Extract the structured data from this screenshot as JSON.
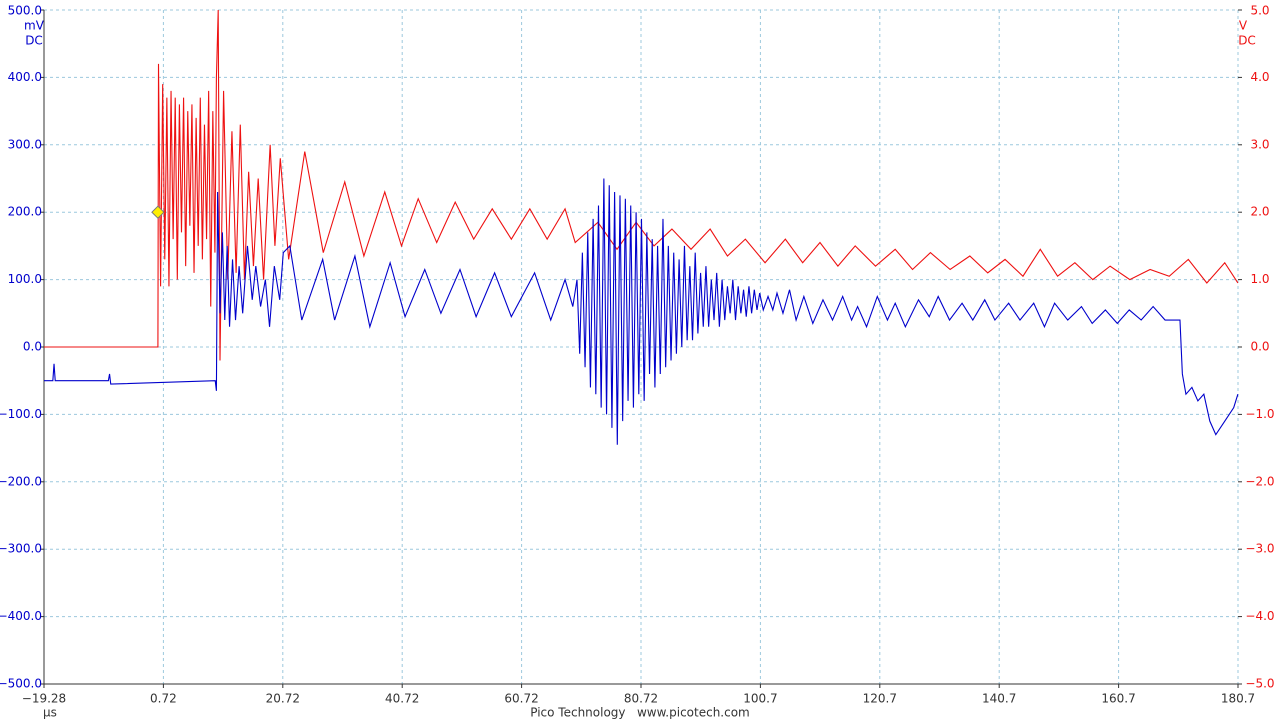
{
  "chart_data": {
    "type": "line",
    "y_unit": "mV",
    "y_coupling": "DC",
    "y2_unit": "V",
    "y2_coupling": "DC",
    "x_unit": "µs",
    "footer": "Pico Technology   www.picotech.com",
    "grid": true,
    "xlim": [
      -19.28,
      180.72
    ],
    "xticks": [
      {
        "value": -19.28,
        "label": "−19.28"
      },
      0.72,
      20.72,
      40.72,
      60.72,
      80.72,
      {
        "value": 100.72,
        "label": "100.7"
      },
      {
        "value": 120.72,
        "label": "120.7"
      },
      {
        "value": 140.72,
        "label": "140.7"
      },
      {
        "value": 160.72,
        "label": "160.7"
      },
      {
        "value": 180.72,
        "label": "180.7"
      }
    ],
    "ylim": [
      -500,
      500
    ],
    "yticks": [
      {
        "value": 500,
        "label": "500.0"
      },
      {
        "value": 400,
        "label": "400.0"
      },
      {
        "value": 300,
        "label": "300.0"
      },
      {
        "value": 200,
        "label": "200.0"
      },
      {
        "value": 100,
        "label": "100.0"
      },
      {
        "value": 0,
        "label": "0.0"
      },
      {
        "value": -100,
        "label": "−100.0"
      },
      {
        "value": -200,
        "label": "−200.0"
      },
      {
        "value": -300,
        "label": "−300.0"
      },
      {
        "value": -400,
        "label": "−400.0"
      },
      {
        "value": -500,
        "label": "−500.0"
      }
    ],
    "y2lim": [
      -5,
      5
    ],
    "y2ticks": [
      {
        "value": 5,
        "label": "5.0"
      },
      {
        "value": 4,
        "label": "4.0"
      },
      {
        "value": 3,
        "label": "3.0"
      },
      {
        "value": 2,
        "label": "2.0"
      },
      {
        "value": 1,
        "label": "1.0"
      },
      {
        "value": 0,
        "label": "0.0"
      },
      {
        "value": -1,
        "label": "−1.0"
      },
      {
        "value": -2,
        "label": "−2.0"
      },
      {
        "value": -3,
        "label": "−3.0"
      },
      {
        "value": -4,
        "label": "−4.0"
      },
      {
        "value": -5,
        "label": "−5.0"
      }
    ],
    "trigger": {
      "x": -0.2,
      "y": 200,
      "color": "#ffee00"
    },
    "series": [
      {
        "color": "#ee1111",
        "axis": "y2",
        "x": [
          -19.28,
          -0.2,
          -0.1,
          0.25,
          0.6,
          0.95,
          1.3,
          1.65,
          2.0,
          2.35,
          2.7,
          3.05,
          3.4,
          3.75,
          4.1,
          4.45,
          4.8,
          5.15,
          5.5,
          5.85,
          6.2,
          6.55,
          6.9,
          7.25,
          7.6,
          7.95,
          8.3,
          8.65,
          9.0,
          9.35,
          9.6,
          9.9,
          10.2,
          10.8,
          11.5,
          12.2,
          12.9,
          13.6,
          14.3,
          15.0,
          15.8,
          16.6,
          17.5,
          18.6,
          19.4,
          20.3,
          21.7,
          24.4,
          27.5,
          31.1,
          34.3,
          37.8,
          40.6,
          43.4,
          46.5,
          49.6,
          52.7,
          55.8,
          59.0,
          62.1,
          65.0,
          68.0,
          69.7,
          73.5,
          76.7,
          79.9,
          82.9,
          85.9,
          89.1,
          92.3,
          95.2,
          98.2,
          101.5,
          104.9,
          107.8,
          110.7,
          113.7,
          116.6,
          120.0,
          123.3,
          126.2,
          129.2,
          132.5,
          135.8,
          138.8,
          141.7,
          144.7,
          147.6,
          150.5,
          153.4,
          156.4,
          159.3,
          162.6,
          166.0,
          169.2,
          172.4,
          175.5,
          178.5,
          180.7
        ],
        "values": [
          0.0,
          0.0,
          4.2,
          0.9,
          3.9,
          1.3,
          3.7,
          0.9,
          3.8,
          1.6,
          3.7,
          1.0,
          3.6,
          1.7,
          3.7,
          1.2,
          3.5,
          1.8,
          3.6,
          1.1,
          3.4,
          1.5,
          3.7,
          1.3,
          3.3,
          1.6,
          3.8,
          0.6,
          3.5,
          1.4,
          4.0,
          5.0,
          -0.2,
          3.8,
          1.0,
          3.2,
          1.1,
          3.3,
          1.0,
          2.6,
          1.2,
          2.5,
          1.0,
          3.0,
          1.5,
          2.8,
          1.3,
          2.9,
          1.4,
          2.45,
          1.35,
          2.3,
          1.5,
          2.2,
          1.55,
          2.15,
          1.6,
          2.05,
          1.6,
          2.05,
          1.6,
          2.05,
          1.55,
          1.85,
          1.45,
          1.85,
          1.5,
          1.75,
          1.45,
          1.75,
          1.35,
          1.6,
          1.25,
          1.6,
          1.25,
          1.55,
          1.2,
          1.5,
          1.2,
          1.45,
          1.15,
          1.4,
          1.15,
          1.35,
          1.1,
          1.3,
          1.05,
          1.45,
          1.05,
          1.25,
          1.0,
          1.2,
          1.0,
          1.15,
          1.05,
          1.3,
          0.95,
          1.25,
          0.95
        ]
      },
      {
        "color": "#0000cc",
        "x": [
          -19.28,
          -17.8,
          -17.6,
          -17.4,
          -8.5,
          -8.3,
          -8.1,
          9.4,
          9.6,
          9.8,
          10.2,
          10.6,
          11.0,
          11.4,
          11.8,
          12.3,
          12.8,
          13.4,
          14.0,
          14.8,
          15.6,
          16.2,
          17.0,
          17.8,
          18.5,
          19.3,
          20.2,
          20.8,
          21.9,
          23.9,
          27.4,
          29.4,
          32.8,
          35.3,
          38.7,
          41.2,
          44.5,
          47.2,
          50.4,
          53.1,
          56.2,
          59.0,
          62.9,
          65.6,
          68.0,
          69.3,
          70.0,
          70.45,
          70.9,
          71.35,
          71.8,
          72.25,
          72.7,
          73.15,
          73.6,
          74.05,
          74.5,
          74.95,
          75.4,
          75.85,
          76.3,
          76.75,
          77.2,
          77.65,
          78.1,
          78.55,
          79.0,
          79.45,
          79.9,
          80.35,
          80.8,
          81.25,
          81.7,
          82.15,
          82.6,
          83.05,
          83.5,
          83.95,
          84.4,
          84.85,
          85.3,
          85.75,
          86.2,
          86.65,
          87.1,
          87.55,
          88.0,
          88.45,
          88.9,
          89.35,
          89.8,
          90.25,
          90.7,
          91.15,
          91.6,
          92.05,
          92.5,
          92.95,
          93.4,
          93.85,
          94.3,
          94.75,
          95.2,
          95.65,
          96.1,
          96.55,
          97.0,
          97.45,
          97.9,
          98.35,
          98.8,
          99.25,
          99.7,
          100.15,
          100.6,
          101.2,
          102.0,
          102.8,
          103.5,
          104.5,
          105.6,
          106.7,
          108.0,
          109.5,
          111.2,
          112.8,
          114.5,
          116.0,
          117.0,
          118.5,
          120.3,
          122.0,
          123.3,
          125.0,
          127.2,
          129.0,
          130.5,
          132.4,
          134.5,
          136.3,
          138.3,
          140.0,
          142.3,
          144.2,
          146.5,
          148.3,
          150.0,
          152.2,
          154.5,
          156.3,
          158.5,
          160.5,
          162.5,
          164.5,
          166.5,
          168.5,
          171.0,
          171.4,
          172.0,
          173.0,
          174.0,
          175.0,
          176.0,
          177.0,
          178.5,
          180.0,
          180.7
        ],
        "values": [
          -50,
          -50,
          -25,
          -50,
          -50,
          -40,
          -55,
          -50,
          -65,
          230,
          50,
          170,
          40,
          150,
          30,
          130,
          40,
          120,
          50,
          150,
          70,
          120,
          60,
          100,
          30,
          120,
          70,
          140,
          150,
          40,
          130,
          40,
          135,
          30,
          125,
          45,
          115,
          50,
          115,
          45,
          110,
          45,
          110,
          40,
          100,
          60,
          100,
          -10,
          140,
          -30,
          170,
          -60,
          190,
          -70,
          210,
          -90,
          250,
          -100,
          240,
          -120,
          230,
          -145,
          225,
          -110,
          220,
          -80,
          210,
          -90,
          200,
          -70,
          190,
          -80,
          170,
          -40,
          160,
          -60,
          150,
          -40,
          190,
          -30,
          150,
          -20,
          140,
          -10,
          130,
          0,
          150,
          10,
          120,
          10,
          140,
          20,
          110,
          30,
          120,
          30,
          100,
          40,
          110,
          30,
          100,
          40,
          90,
          50,
          100,
          40,
          90,
          50,
          85,
          45,
          90,
          50,
          85,
          55,
          80,
          55,
          75,
          55,
          80,
          50,
          85,
          40,
          75,
          35,
          70,
          40,
          75,
          40,
          60,
          30,
          75,
          40,
          65,
          30,
          70,
          45,
          75,
          40,
          65,
          40,
          70,
          40,
          65,
          40,
          65,
          30,
          65,
          40,
          60,
          35,
          55,
          35,
          55,
          40,
          60,
          40,
          40,
          -40,
          -70,
          -60,
          -80,
          -70,
          -110,
          -130,
          -110,
          -90,
          -70
        ]
      }
    ]
  }
}
